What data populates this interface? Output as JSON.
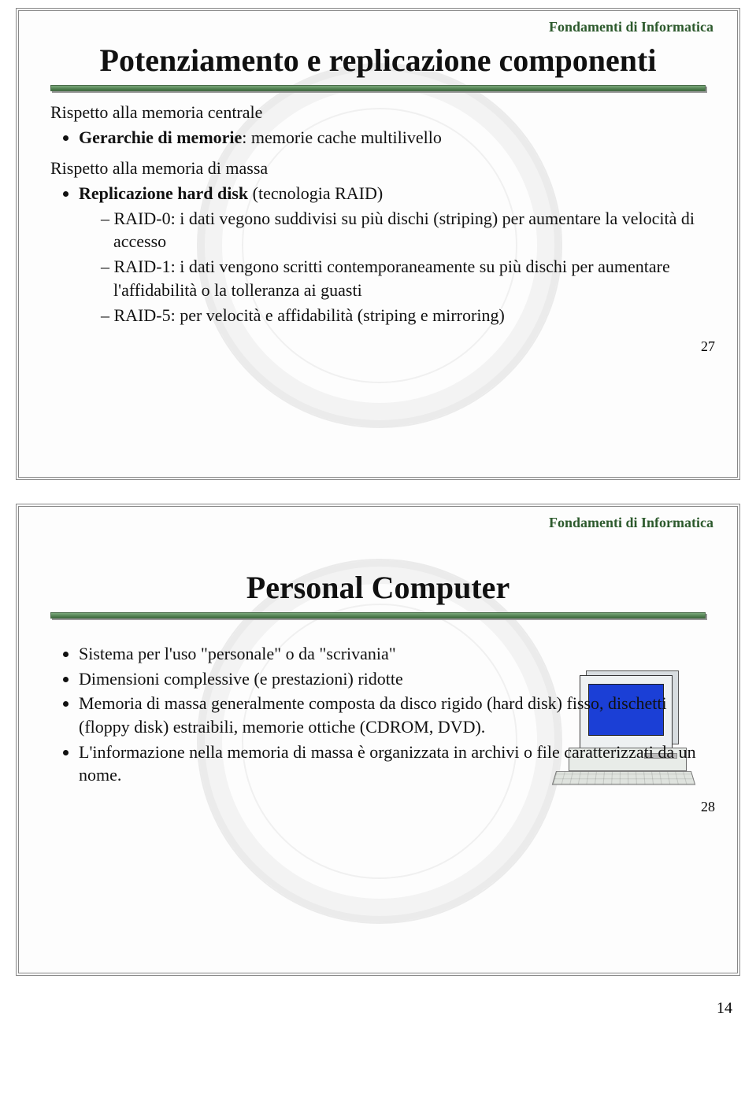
{
  "header_label": "Fondamenti di Informatica",
  "page_number": "14",
  "slides": [
    {
      "number": "27",
      "title": "Potenziamento e replicazione componenti",
      "sections": [
        {
          "lead": "Rispetto alla memoria centrale",
          "bullets": [
            {
              "html": "<span class='bold'>Gerarchie di memorie</span>: memorie cache multilivello"
            }
          ]
        },
        {
          "lead": "Rispetto alla memoria di massa",
          "bullets": [
            {
              "html": "<span class='bold'>Replicazione hard disk</span> (tecnologia RAID)",
              "sub": [
                "RAID-0: i dati vegono suddivisi su più dischi (striping) per aumentare la velocità di accesso",
                "RAID-1: i dati vengono scritti contemporaneamente su più dischi per aumentare l'affidabilità o la tolleranza ai guasti",
                "RAID-5: per velocità e affidabilità (striping e mirroring)"
              ]
            }
          ]
        }
      ]
    },
    {
      "number": "28",
      "title": "Personal Computer",
      "bullets": [
        "Sistema per l'uso \"personale\" o da \"scrivania\"",
        "Dimensioni complessive (e prestazioni) ridotte",
        "Memoria di massa generalmente composta da disco rigido (hard disk) fisso, dischetti (floppy disk) estraibili, memorie ottiche (CDROM, DVD).",
        "L'informazione nella memoria di massa è organizzata in archivi o file caratterizzati da un nome."
      ],
      "has_computer_image": true
    }
  ],
  "colors": {
    "accent_green": "#2d5a2d",
    "rule_gradient_top": "#7aa87a",
    "rule_gradient_bottom": "#3d6b3d",
    "screen_blue": "#1b3fd6"
  }
}
